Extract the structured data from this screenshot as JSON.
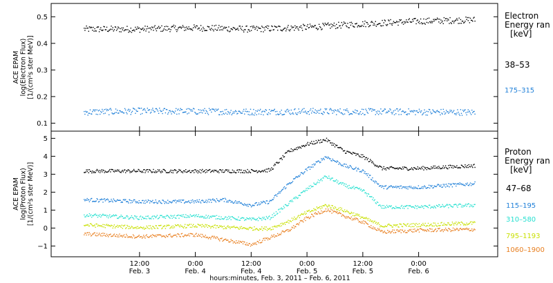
{
  "chart_data": [
    {
      "type": "scatter",
      "panel": "electron",
      "ylabel_lines": [
        "ACE EPAM",
        "log(Electron Flux)",
        "[1/(cm²s ster MeV)]"
      ],
      "ylim": [
        0.07,
        0.55
      ],
      "yticks": [
        0.1,
        0.2,
        0.3,
        0.4,
        0.5
      ],
      "ytick_labels": [
        "0.1",
        "0.2",
        "0.3",
        "0.4",
        "0.5"
      ],
      "legend": {
        "title_lines": [
          "Electron",
          "Energy ran",
          "[keV]"
        ],
        "placement": "right"
      },
      "series": [
        {
          "name": "38–53",
          "color": "#000000",
          "x": [
            0,
            12,
            24,
            36,
            48,
            60,
            72,
            84
          ],
          "y": [
            0.455,
            0.455,
            0.46,
            0.455,
            0.462,
            0.475,
            0.485,
            0.49
          ]
        },
        {
          "name": "175–315",
          "color": "#1e7fd8",
          "x": [
            0,
            12,
            24,
            36,
            48,
            60,
            72,
            84
          ],
          "y": [
            0.143,
            0.147,
            0.146,
            0.144,
            0.146,
            0.145,
            0.144,
            0.142
          ]
        }
      ]
    },
    {
      "type": "scatter",
      "panel": "proton",
      "ylabel_lines": [
        "ACE EPAM",
        "log(Proton Flux)",
        "[1/(cm²s ster MeV)]"
      ],
      "ylim": [
        -1.6,
        5.4
      ],
      "yticks": [
        -1,
        0,
        1,
        2,
        3,
        4,
        5
      ],
      "ytick_labels": [
        "−1",
        "0",
        "1",
        "2",
        "3",
        "4",
        "5"
      ],
      "legend": {
        "title_lines": [
          "Proton",
          "Energy ran",
          "[keV]"
        ],
        "placement": "right"
      },
      "series": [
        {
          "name": "47–68",
          "color": "#000000",
          "x": [
            0,
            12,
            24,
            36,
            40,
            44,
            48,
            52,
            56,
            60,
            64,
            72,
            84
          ],
          "y": [
            3.2,
            3.2,
            3.2,
            3.2,
            3.25,
            4.3,
            4.7,
            4.95,
            4.3,
            4.0,
            3.35,
            3.35,
            3.5
          ]
        },
        {
          "name": "115–195",
          "color": "#1e7fd8",
          "x": [
            0,
            12,
            24,
            30,
            36,
            40,
            44,
            48,
            52,
            56,
            60,
            64,
            72,
            84
          ],
          "y": [
            1.6,
            1.5,
            1.5,
            1.6,
            1.3,
            1.5,
            2.5,
            3.3,
            4.0,
            3.5,
            3.2,
            2.3,
            2.3,
            2.5
          ]
        },
        {
          "name": "310–580",
          "color": "#26e0d0",
          "x": [
            0,
            12,
            24,
            36,
            40,
            44,
            48,
            52,
            56,
            60,
            64,
            72,
            84
          ],
          "y": [
            0.75,
            0.6,
            0.7,
            0.5,
            0.6,
            1.4,
            2.2,
            2.9,
            2.4,
            2.1,
            1.2,
            1.2,
            1.3
          ]
        },
        {
          "name": "795–1193",
          "color": "#c8e000",
          "x": [
            0,
            12,
            24,
            36,
            40,
            44,
            48,
            52,
            56,
            60,
            64,
            72,
            84
          ],
          "y": [
            0.2,
            0.05,
            0.15,
            0.0,
            0.0,
            0.4,
            0.9,
            1.3,
            1.0,
            0.6,
            0.15,
            0.2,
            0.3
          ]
        },
        {
          "name": "1060–1900",
          "color": "#e87e1e",
          "x": [
            0,
            12,
            24,
            36,
            40,
            44,
            48,
            52,
            56,
            60,
            64,
            72,
            84
          ],
          "y": [
            -0.3,
            -0.45,
            -0.35,
            -0.9,
            -0.5,
            -0.1,
            0.6,
            1.05,
            0.7,
            0.35,
            -0.2,
            -0.1,
            -0.05
          ]
        }
      ]
    }
  ],
  "x_axis": {
    "xlim": [
      -7,
      89
    ],
    "ticks": [
      12,
      24,
      36,
      48,
      60,
      72
    ],
    "tick_labels_top": [
      "12:00",
      "0:00",
      "12:00",
      "0:00",
      "12:00",
      "0:00"
    ],
    "tick_labels_bottom": [
      "Feb. 3",
      "Feb. 4",
      "Feb. 4",
      "Feb. 5",
      "Feb. 5",
      "Feb. 6"
    ],
    "title": "hours:minutes, Feb.  3, 2011 – Feb.  6, 2011"
  }
}
